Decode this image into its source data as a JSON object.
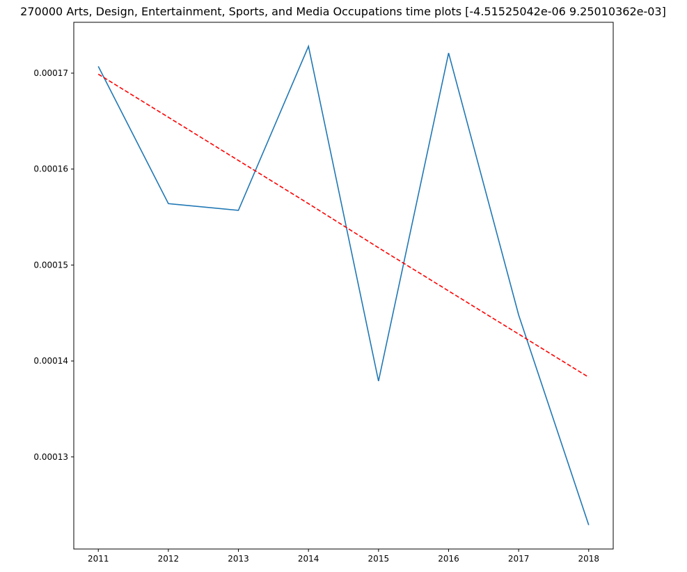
{
  "chart_data": {
    "type": "line",
    "title": "270000 Arts, Design, Entertainment, Sports, and Media Occupations time plots [-4.51525042e-06  9.25010362e-03]",
    "xlabel": "",
    "ylabel": "",
    "x": [
      2011,
      2012,
      2013,
      2014,
      2015,
      2016,
      2017,
      2018
    ],
    "series": [
      {
        "values": [
          0.0001707,
          0.0001564,
          0.0001557,
          0.0001728,
          0.0001379,
          0.0001721,
          0.0001448,
          0.0001229
        ],
        "color": "#1f77b4",
        "style": "solid"
      },
      {
        "values": [
          0.0001699,
          0.0001654,
          0.0001609,
          0.0001564,
          0.0001518,
          0.0001473,
          0.0001428,
          0.0001383
        ],
        "color": "#ff0000",
        "style": "dashed"
      }
    ],
    "x_ticks": [
      "2011",
      "2012",
      "2013",
      "2014",
      "2015",
      "2016",
      "2017",
      "2018"
    ],
    "y_ticks": [
      "0.00013",
      "0.00014",
      "0.00015",
      "0.00016",
      "0.00017"
    ],
    "xlim": [
      2010.65,
      2018.35
    ],
    "ylim": [
      0.0001204,
      0.0001753
    ],
    "grid": false,
    "legend": "none"
  }
}
